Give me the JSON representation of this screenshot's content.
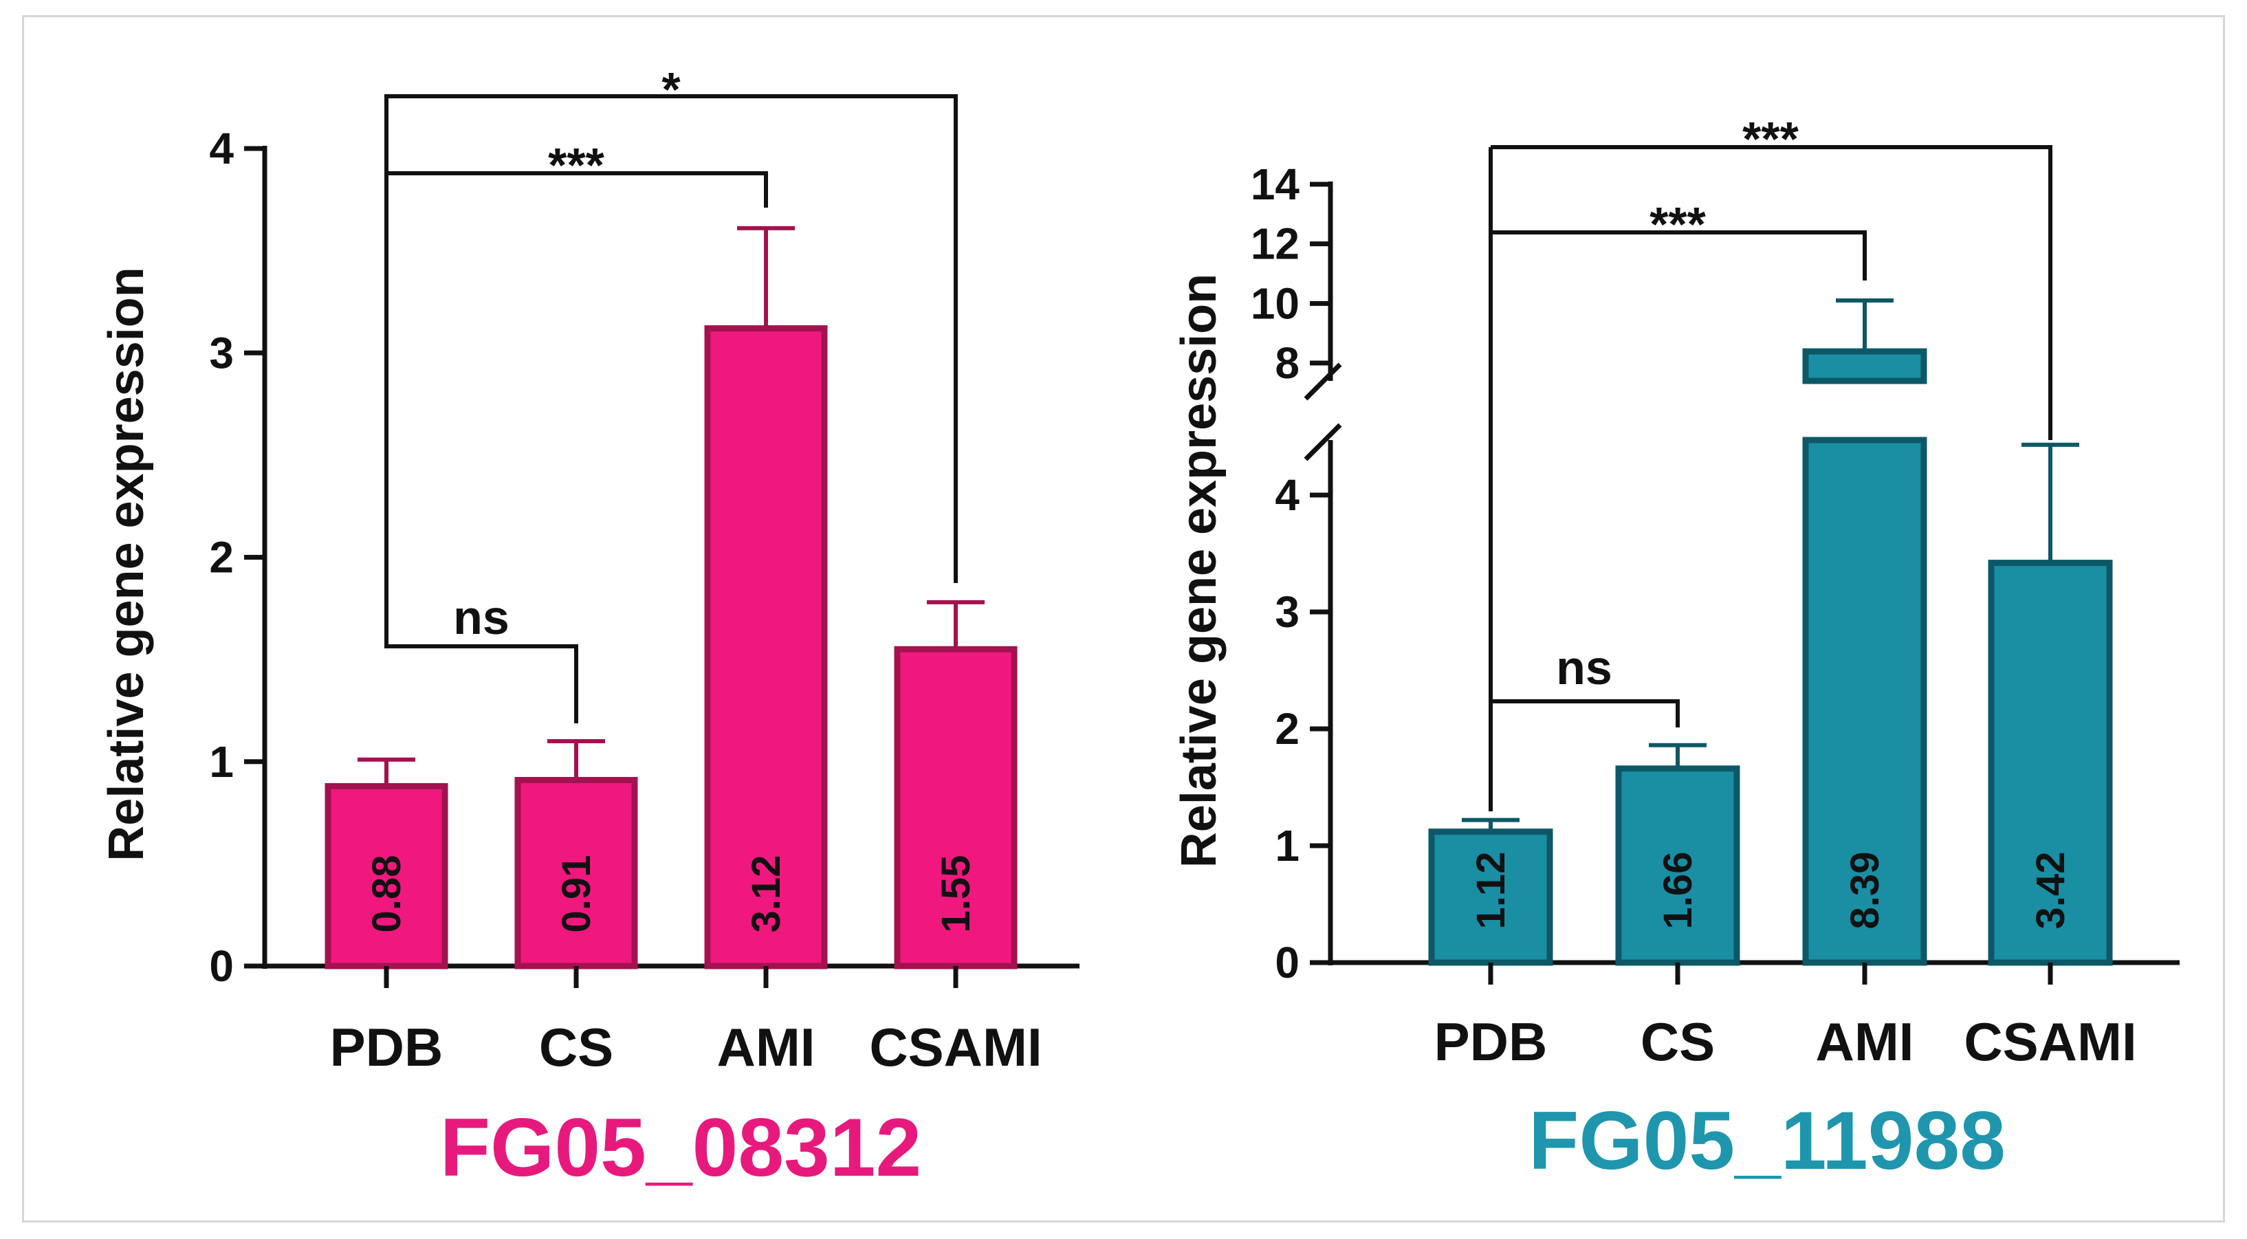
{
  "chart_data": [
    {
      "type": "bar",
      "title": "FG05_08312",
      "title_color": "#e8197d",
      "bar_color": "#f0187e",
      "bar_edge_color": "#a3124f",
      "ylabel": "Relative gene expression",
      "ylim": [
        0,
        4
      ],
      "yticks": [
        "0",
        "1",
        "2",
        "3",
        "4"
      ],
      "categories": [
        "PDB",
        "CS",
        "AMI",
        "CSAMI"
      ],
      "values": [
        0.88,
        0.91,
        3.12,
        1.55
      ],
      "value_labels": [
        "0.88",
        "0.91",
        "3.12",
        "1.55"
      ],
      "error_tops": [
        1.01,
        1.1,
        3.61,
        1.78
      ],
      "comparisons": [
        {
          "from": "PDB",
          "to": "CS",
          "label": "ns"
        },
        {
          "from": "PDB",
          "to": "AMI",
          "label": "***"
        },
        {
          "from": "PDB",
          "to": "CSAMI",
          "label": "*"
        }
      ]
    },
    {
      "type": "bar",
      "title": "FG05_11988",
      "title_color": "#1f96ad",
      "bar_color": "#1a8ea3",
      "bar_edge_color": "#0d5866",
      "ylabel": "Relative gene expression",
      "axis_break": {
        "lower": [
          0,
          4.6
        ],
        "upper": [
          7.4,
          14
        ]
      },
      "yticks_lower": [
        "0",
        "1",
        "2",
        "3",
        "4"
      ],
      "yticks_upper": [
        "8",
        "10",
        "12",
        "14"
      ],
      "categories": [
        "PDB",
        "CS",
        "AMI",
        "CSAMI"
      ],
      "values": [
        1.12,
        1.66,
        8.39,
        3.42
      ],
      "value_labels": [
        "1.12",
        "1.66",
        "8.39",
        "3.42"
      ],
      "error_tops": [
        1.22,
        1.86,
        10.1,
        4.43
      ],
      "comparisons": [
        {
          "from": "PDB",
          "to": "CS",
          "label": "ns"
        },
        {
          "from": "PDB",
          "to": "AMI",
          "label": "***"
        },
        {
          "from": "PDB",
          "to": "CSAMI",
          "label": "***"
        }
      ]
    }
  ]
}
